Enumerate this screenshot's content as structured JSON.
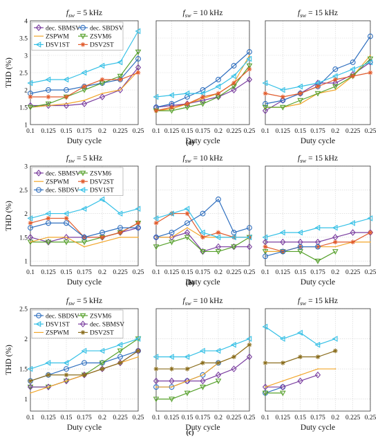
{
  "chart_data": [
    {
      "type": "line",
      "row": "a",
      "col": 0,
      "title": "fsw = 5 kHz",
      "xlabel": "Duty cycle",
      "ylabel": "THD (%)",
      "x": [
        0.1,
        0.125,
        0.15,
        0.175,
        0.2,
        0.225,
        0.25
      ],
      "xlim": [
        0.1,
        0.25
      ],
      "ylim": [
        1,
        4
      ],
      "yticks": [
        1,
        1.5,
        2,
        2.5,
        3,
        3.5,
        4
      ],
      "grid": true,
      "legend_placement": "top-left",
      "series": [
        {
          "name": "dec. SBMSV",
          "color": "#7b3fa0",
          "marker": "diamond",
          "values": [
            1.55,
            1.55,
            1.55,
            1.6,
            1.8,
            2.0,
            2.65
          ]
        },
        {
          "name": "dec. SBDSV",
          "color": "#2f6fbf",
          "marker": "circle",
          "values": [
            1.9,
            2.0,
            2.0,
            2.1,
            2.2,
            2.3,
            2.9
          ]
        },
        {
          "name": "ZSPWM",
          "color": "#f2a62a",
          "marker": "none",
          "values": [
            1.5,
            1.55,
            1.6,
            1.7,
            1.9,
            2.0,
            2.55
          ]
        },
        {
          "name": "ZSVM6",
          "color": "#55a02a",
          "marker": "triangle-down",
          "values": [
            1.5,
            1.6,
            1.8,
            2.0,
            2.2,
            2.4,
            3.1
          ]
        },
        {
          "name": "DSV1ST",
          "color": "#35c0e6",
          "marker": "triangle-left",
          "values": [
            2.2,
            2.3,
            2.3,
            2.5,
            2.7,
            2.8,
            3.7
          ]
        },
        {
          "name": "DSV2ST",
          "color": "#e05a2b",
          "marker": "star",
          "values": [
            1.8,
            1.8,
            1.8,
            2.1,
            2.3,
            2.3,
            2.5
          ]
        }
      ]
    },
    {
      "type": "line",
      "row": "a",
      "col": 1,
      "title": "fsw = 10 kHz",
      "xlabel": "Duty cycle",
      "x": [
        0.1,
        0.125,
        0.15,
        0.175,
        0.2,
        0.225,
        0.25
      ],
      "xlim": [
        0.1,
        0.25
      ],
      "ylim": [
        1,
        4
      ],
      "grid": true,
      "series": [
        {
          "name": "dec. SBMSV",
          "color": "#7b3fa0",
          "marker": "diamond",
          "values": [
            1.5,
            1.55,
            1.6,
            1.7,
            1.8,
            2.0,
            2.3
          ]
        },
        {
          "name": "dec. SBDSV",
          "color": "#2f6fbf",
          "marker": "circle",
          "values": [
            1.5,
            1.6,
            1.8,
            2.0,
            2.3,
            2.7,
            3.1
          ]
        },
        {
          "name": "ZSPWM",
          "color": "#f2a62a",
          "marker": "none",
          "values": [
            1.4,
            1.45,
            1.6,
            1.75,
            1.9,
            2.2,
            3.0
          ]
        },
        {
          "name": "ZSVM6",
          "color": "#55a02a",
          "marker": "triangle-down",
          "values": [
            1.4,
            1.4,
            1.5,
            1.6,
            1.8,
            2.1,
            2.7
          ]
        },
        {
          "name": "DSV1ST",
          "color": "#35c0e6",
          "marker": "triangle-left",
          "values": [
            1.8,
            1.85,
            1.9,
            1.9,
            2.1,
            2.4,
            2.9
          ]
        },
        {
          "name": "DSV2ST",
          "color": "#e05a2b",
          "marker": "star",
          "values": [
            1.4,
            1.5,
            1.6,
            1.8,
            1.9,
            2.2,
            2.6
          ]
        }
      ]
    },
    {
      "type": "line",
      "row": "a",
      "col": 2,
      "title": "fsw = 15 kHz",
      "xlabel": "Duty cycle",
      "x": [
        0.1,
        0.125,
        0.15,
        0.175,
        0.2,
        0.225,
        0.25
      ],
      "xlim": [
        0.1,
        0.25
      ],
      "ylim": [
        1,
        4
      ],
      "grid": true,
      "series": [
        {
          "name": "dec. SBMSV",
          "color": "#7b3fa0",
          "marker": "diamond",
          "values": [
            1.4,
            1.7,
            1.9,
            2.2,
            2.2,
            2.45,
            2.8
          ]
        },
        {
          "name": "dec. SBDSV",
          "color": "#2f6fbf",
          "marker": "circle",
          "values": [
            1.6,
            1.7,
            1.9,
            2.1,
            2.6,
            2.8,
            3.55
          ]
        },
        {
          "name": "ZSPWM",
          "color": "#f2a62a",
          "marker": "none",
          "values": [
            1.5,
            1.5,
            1.6,
            1.9,
            2.0,
            2.4,
            3.0
          ]
        },
        {
          "name": "ZSVM6",
          "color": "#55a02a",
          "marker": "triangle-down",
          "values": [
            1.5,
            1.5,
            1.7,
            1.9,
            2.1,
            2.4,
            2.9
          ]
        },
        {
          "name": "DSV1ST",
          "color": "#35c0e6",
          "marker": "triangle-left",
          "values": [
            2.2,
            2.0,
            2.1,
            2.2,
            2.4,
            2.6,
            2.8
          ]
        },
        {
          "name": "DSV2ST",
          "color": "#e05a2b",
          "marker": "star",
          "values": [
            1.9,
            1.8,
            1.9,
            2.1,
            2.3,
            2.4,
            2.5
          ]
        }
      ]
    },
    {
      "type": "line",
      "row": "b",
      "col": 0,
      "title": "fsw = 5 kHz",
      "xlabel": "Duty cycle",
      "ylabel": "THD (%)",
      "x": [
        0.1,
        0.125,
        0.15,
        0.175,
        0.2,
        0.225,
        0.25
      ],
      "xlim": [
        0.1,
        0.25
      ],
      "ylim": [
        0.9,
        3
      ],
      "yticks": [
        1,
        1.5,
        2,
        2.5,
        3
      ],
      "grid": true,
      "legend_placement": "top-left",
      "series": [
        {
          "name": "dec. SBMSV",
          "color": "#7b3fa0",
          "marker": "diamond",
          "values": [
            1.5,
            1.4,
            1.5,
            1.5,
            1.5,
            1.6,
            1.7
          ]
        },
        {
          "name": "ZSVM6",
          "color": "#55a02a",
          "marker": "triangle-down",
          "values": [
            1.4,
            1.4,
            1.4,
            1.4,
            1.5,
            1.6,
            1.8
          ]
        },
        {
          "name": "ZSPWM",
          "color": "#f2a62a",
          "marker": "none",
          "values": [
            1.4,
            1.5,
            1.5,
            1.3,
            1.4,
            1.5,
            1.5
          ]
        },
        {
          "name": "DSV2ST",
          "color": "#e05a2b",
          "marker": "star",
          "values": [
            1.8,
            1.9,
            1.9,
            1.5,
            1.5,
            1.6,
            1.8
          ]
        },
        {
          "name": "dec. SBDSV",
          "color": "#2f6fbf",
          "marker": "circle",
          "values": [
            1.7,
            1.8,
            1.8,
            1.5,
            1.6,
            1.7,
            1.7
          ]
        },
        {
          "name": "DSV1ST",
          "color": "#35c0e6",
          "marker": "triangle-left",
          "values": [
            1.9,
            2.0,
            2.0,
            2.1,
            2.3,
            2.0,
            2.1
          ]
        }
      ]
    },
    {
      "type": "line",
      "row": "b",
      "col": 1,
      "title": "fsw = 10 kHz",
      "xlabel": "Duty cycle",
      "x": [
        0.1,
        0.125,
        0.15,
        0.175,
        0.2,
        0.225,
        0.25
      ],
      "xlim": [
        0.1,
        0.25
      ],
      "ylim": [
        0.9,
        3
      ],
      "grid": true,
      "series": [
        {
          "name": "dec. SBMSV",
          "color": "#7b3fa0",
          "marker": "diamond",
          "values": [
            1.5,
            1.5,
            1.6,
            1.2,
            1.3,
            1.3,
            1.3
          ]
        },
        {
          "name": "ZSVM6",
          "color": "#55a02a",
          "marker": "triangle-down",
          "values": [
            1.3,
            1.4,
            1.5,
            1.2,
            1.2,
            1.3,
            1.5
          ]
        },
        {
          "name": "ZSPWM",
          "color": "#f2a62a",
          "marker": "none",
          "values": [
            1.5,
            1.5,
            1.7,
            1.5,
            1.5,
            1.5,
            1.5
          ]
        },
        {
          "name": "DSV2ST",
          "color": "#e05a2b",
          "marker": "star",
          "values": [
            1.8,
            2.0,
            2.0,
            1.5,
            1.6,
            1.5,
            1.5
          ]
        },
        {
          "name": "dec. SBDSV",
          "color": "#2f6fbf",
          "marker": "circle",
          "values": [
            1.5,
            1.6,
            1.8,
            2.0,
            2.3,
            1.6,
            1.7
          ]
        },
        {
          "name": "DSV1ST",
          "color": "#35c0e6",
          "marker": "triangle-left",
          "values": [
            1.9,
            2.0,
            2.1,
            1.6,
            1.5,
            1.5,
            1.5
          ]
        }
      ]
    },
    {
      "type": "line",
      "row": "b",
      "col": 2,
      "title": "fsw = 15 kHz",
      "xlabel": "Duty cycle",
      "x": [
        0.1,
        0.125,
        0.15,
        0.175,
        0.2,
        0.225,
        0.25
      ],
      "xlim": [
        0.1,
        0.25
      ],
      "ylim": [
        0.9,
        3
      ],
      "grid": true,
      "series": [
        {
          "name": "dec. SBMSV",
          "color": "#7b3fa0",
          "marker": "diamond",
          "values": [
            1.4,
            1.4,
            1.4,
            1.4,
            1.5,
            1.6,
            1.6
          ]
        },
        {
          "name": "ZSVM6",
          "color": "#55a02a",
          "marker": "triangle-down",
          "values": [
            1.2,
            1.2,
            1.2,
            1.0,
            1.2,
            null,
            null
          ]
        },
        {
          "name": "ZSPWM",
          "color": "#f2a62a",
          "marker": "none",
          "values": [
            1.2,
            1.2,
            1.3,
            1.3,
            1.3,
            1.4,
            1.4
          ]
        },
        {
          "name": "DSV2ST",
          "color": "#e05a2b",
          "marker": "star",
          "values": [
            1.3,
            1.2,
            1.3,
            1.3,
            1.4,
            1.4,
            1.6
          ]
        },
        {
          "name": "dec. SBDSV",
          "color": "#2f6fbf",
          "marker": "circle",
          "values": [
            1.1,
            1.2,
            1.3,
            1.3,
            null,
            null,
            null
          ]
        },
        {
          "name": "DSV1ST",
          "color": "#35c0e6",
          "marker": "triangle-left",
          "values": [
            1.5,
            1.6,
            1.6,
            1.7,
            1.7,
            1.8,
            1.9
          ]
        }
      ]
    },
    {
      "type": "line",
      "row": "c",
      "col": 0,
      "title": "fsw = 5 kHz",
      "xlabel": "Duty cycle",
      "ylabel": "THD (%)",
      "x": [
        0.1,
        0.125,
        0.15,
        0.175,
        0.2,
        0.225,
        0.25
      ],
      "xlim": [
        0.1,
        0.25
      ],
      "ylim": [
        0.8,
        2.5
      ],
      "yticks": [
        1,
        1.5,
        2,
        2.5
      ],
      "grid": true,
      "legend_placement": "top-left",
      "series": [
        {
          "name": "dec. SBDSV",
          "color": "#2f6fbf",
          "marker": "circle",
          "values": [
            1.3,
            1.4,
            1.5,
            1.6,
            1.6,
            1.7,
            1.8
          ]
        },
        {
          "name": "ZSVM6",
          "color": "#55a02a",
          "marker": "triangle-down",
          "values": [
            1.2,
            1.2,
            1.3,
            1.4,
            1.6,
            1.8,
            2.0
          ]
        },
        {
          "name": "DSV1ST",
          "color": "#35c0e6",
          "marker": "triangle-left",
          "values": [
            1.5,
            1.6,
            1.6,
            1.8,
            1.8,
            1.9,
            2.0
          ]
        },
        {
          "name": "dec. SBMSV",
          "color": "#7b3fa0",
          "marker": "diamond",
          "values": [
            1.2,
            1.2,
            1.3,
            1.4,
            1.5,
            1.6,
            1.8
          ]
        },
        {
          "name": "ZSPWM",
          "color": "#f2a62a",
          "marker": "none",
          "values": [
            1.1,
            1.2,
            1.3,
            1.4,
            1.5,
            1.6,
            1.7
          ]
        },
        {
          "name": "DSV2ST",
          "color": "#8a6d1d",
          "marker": "star",
          "values": [
            1.3,
            1.4,
            1.4,
            1.4,
            1.5,
            1.6,
            1.8
          ]
        }
      ]
    },
    {
      "type": "line",
      "row": "c",
      "col": 1,
      "title": "fsw = 10 kHz",
      "xlabel": "Duty cycle",
      "x": [
        0.1,
        0.125,
        0.15,
        0.175,
        0.2,
        0.225,
        0.25
      ],
      "xlim": [
        0.1,
        0.25
      ],
      "ylim": [
        0.8,
        2.5
      ],
      "grid": true,
      "series": [
        {
          "name": "dec. SBDSV",
          "color": "#2f6fbf",
          "marker": "circle",
          "values": [
            1.2,
            1.2,
            1.3,
            1.4,
            1.6,
            null,
            null
          ]
        },
        {
          "name": "ZSVM6",
          "color": "#55a02a",
          "marker": "triangle-down",
          "values": [
            1.0,
            1.0,
            1.1,
            1.2,
            1.3,
            null,
            null
          ]
        },
        {
          "name": "DSV1ST",
          "color": "#35c0e6",
          "marker": "triangle-left",
          "values": [
            1.7,
            1.7,
            1.7,
            1.8,
            1.8,
            1.9,
            2.0
          ]
        },
        {
          "name": "dec. SBMSV",
          "color": "#7b3fa0",
          "marker": "diamond",
          "values": [
            1.3,
            1.3,
            1.3,
            1.3,
            1.4,
            1.5,
            1.7
          ]
        },
        {
          "name": "ZSPWM",
          "color": "#f2a62a",
          "marker": "none",
          "values": [
            1.2,
            1.2,
            1.3,
            1.4,
            1.6,
            1.7,
            1.9
          ]
        },
        {
          "name": "DSV2ST",
          "color": "#8a6d1d",
          "marker": "star",
          "values": [
            1.5,
            1.5,
            1.5,
            1.6,
            1.6,
            1.7,
            1.9
          ]
        }
      ]
    },
    {
      "type": "line",
      "row": "c",
      "col": 2,
      "title": "fsw = 15 kHz",
      "xlabel": "Duty cycle",
      "x": [
        0.1,
        0.125,
        0.15,
        0.175,
        0.2,
        0.225,
        0.25
      ],
      "xlim": [
        0.1,
        0.25
      ],
      "ylim": [
        0.8,
        2.5
      ],
      "grid": true,
      "series": [
        {
          "name": "dec. SBDSV",
          "color": "#2f6fbf",
          "marker": "circle",
          "values": [
            1.1,
            1.2,
            null,
            null,
            null,
            null,
            null
          ]
        },
        {
          "name": "ZSVM6",
          "color": "#55a02a",
          "marker": "triangle-down",
          "values": [
            1.1,
            1.1,
            null,
            null,
            null,
            null,
            null
          ]
        },
        {
          "name": "DSV1ST",
          "color": "#35c0e6",
          "marker": "triangle-left",
          "values": [
            2.2,
            2.0,
            2.1,
            1.9,
            2.0,
            null,
            null
          ]
        },
        {
          "name": "dec. SBMSV",
          "color": "#7b3fa0",
          "marker": "diamond",
          "values": [
            1.2,
            1.2,
            1.3,
            1.4,
            null,
            null,
            null
          ]
        },
        {
          "name": "ZSPWM",
          "color": "#f2a62a",
          "marker": "none",
          "values": [
            1.2,
            1.3,
            1.4,
            1.5,
            1.5,
            null,
            null
          ]
        },
        {
          "name": "DSV2ST",
          "color": "#8a6d1d",
          "marker": "star",
          "values": [
            1.6,
            1.6,
            1.7,
            1.7,
            1.8,
            null,
            null
          ]
        }
      ]
    }
  ],
  "x_tick_labels": [
    "0.1",
    "0.125",
    "0.15",
    "0.175",
    "0.2",
    "0.225",
    "0.25"
  ],
  "row_labels": {
    "a": "(a)",
    "b": "(b)",
    "c": "(c)"
  }
}
